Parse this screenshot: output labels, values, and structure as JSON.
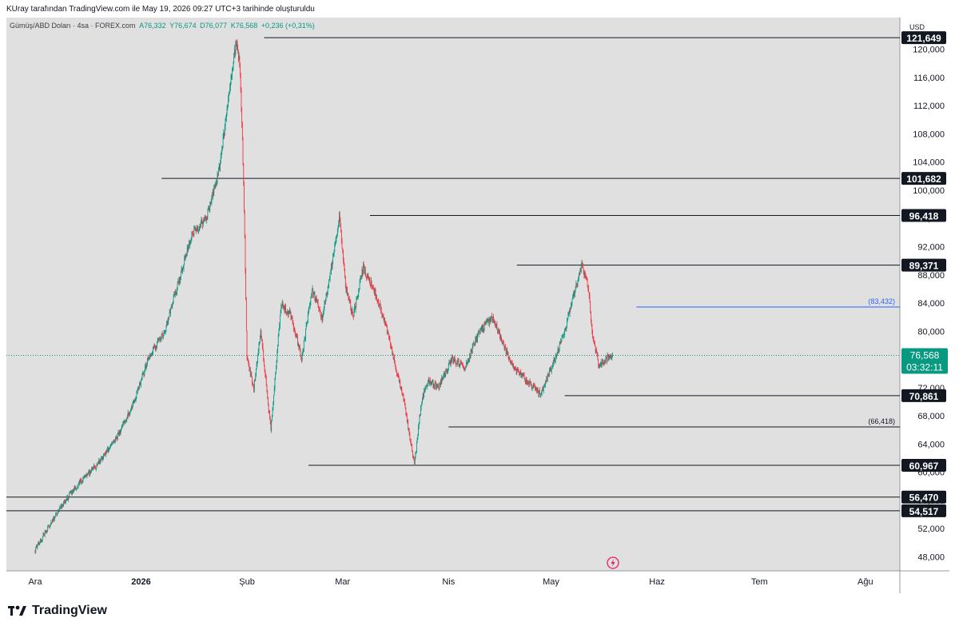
{
  "header": {
    "caption": "KUray tarafından TradingView.com ile May 19, 2026 09:27 UTC+3 tarihinde oluşturuldu"
  },
  "legend": {
    "symbol": "Gümüş/ABD Doları · 4sa · FOREX.com",
    "open": "A76,332",
    "high": "Y76,674",
    "low": "D76,077",
    "close": "K76,568",
    "change": "+0,236 (+0,31%)"
  },
  "price_axis": {
    "currency": "USD"
  },
  "footer": {
    "brand": "TradingView"
  },
  "chart_data": {
    "type": "line",
    "ylim": [
      46000,
      124500
    ],
    "x_ticks": [
      "Ara",
      "2026",
      "Şub",
      "Mar",
      "Nis",
      "May",
      "Haz",
      "Tem",
      "Ağu"
    ],
    "y_ticks": [
      48000,
      52000,
      56000,
      60000,
      64000,
      68000,
      72000,
      76000,
      80000,
      84000,
      88000,
      92000,
      96000,
      100000,
      104000,
      108000,
      112000,
      116000,
      120000
    ],
    "y_tick_labels": [
      "48,000",
      "52,000",
      "56,000",
      "60,000",
      "64,000",
      "68,000",
      "72,000",
      "76,000",
      "80,000",
      "84,000",
      "88,000",
      "92,000",
      "96,000",
      "100,000",
      "104,000",
      "108,000",
      "112,000",
      "116,000",
      "120,000"
    ],
    "last_price": {
      "value": 76568,
      "label": "76,568",
      "countdown": "03:32:11",
      "color": "#089981"
    },
    "levels": [
      {
        "value": 121649,
        "label": "121,649",
        "start": "Şub"
      },
      {
        "value": 101682,
        "label": "101,682",
        "start": "2026"
      },
      {
        "value": 96418,
        "label": "96,418",
        "start": "Mar"
      },
      {
        "value": 89371,
        "label": "89,371",
        "start": "Nis"
      },
      {
        "value": 83432,
        "label": "(83,432)",
        "start": "May",
        "color": "#2962ff"
      },
      {
        "value": 70861,
        "label": "70,861",
        "start": "May"
      },
      {
        "value": 66418,
        "label": "(66,418)",
        "start": "Mar"
      },
      {
        "value": 60967,
        "label": "60,967",
        "start": "Şub"
      },
      {
        "value": 56470,
        "label": "56,470",
        "start": "Ara"
      },
      {
        "value": 54517,
        "label": "54,517",
        "start": "Ara"
      }
    ],
    "series": [
      {
        "color_up": "#089981",
        "color_down": "#f23645",
        "x": [
          "Dec 1",
          "Dec 7",
          "Dec 13",
          "Dec 19",
          "Dec 25",
          "Dec 30",
          "Jan 3",
          "Jan 8",
          "Jan 12",
          "Jan 16",
          "Jan 20",
          "Jan 24",
          "Jan 27",
          "Jan 29",
          "Jan 30",
          "Jan 31",
          "Feb 1",
          "Feb 3",
          "Feb 5",
          "Feb 8",
          "Feb 11",
          "Feb 14",
          "Feb 17",
          "Feb 20",
          "Feb 23",
          "Feb 26",
          "Feb 28",
          "Mar 2",
          "Mar 4",
          "Mar 7",
          "Mar 10",
          "Mar 13",
          "Mar 16",
          "Mar 19",
          "Mar 22",
          "Mar 24",
          "Mar 26",
          "Mar 29",
          "Apr 2",
          "Apr 6",
          "Apr 10",
          "Apr 14",
          "Apr 17",
          "Apr 20",
          "Apr 24",
          "Apr 28",
          "May 2",
          "May 5",
          "May 8",
          "May 10",
          "May 12",
          "May 13",
          "May 15",
          "May 17",
          "May 19"
        ],
        "values": [
          49000,
          54000,
          58000,
          61000,
          65000,
          70000,
          76000,
          80000,
          87000,
          94000,
          96000,
          103000,
          115000,
          121600,
          117000,
          101600,
          76000,
          72000,
          80000,
          66000,
          84000,
          82000,
          76000,
          86000,
          82000,
          90000,
          96400,
          86000,
          82000,
          89000,
          86000,
          82000,
          76000,
          70000,
          61000,
          70000,
          73000,
          72000,
          76000,
          75000,
          80000,
          82000,
          78000,
          75000,
          73000,
          71000,
          76000,
          80000,
          86000,
          89300,
          86000,
          80000,
          75000,
          76000,
          76568
        ]
      }
    ],
    "grid": false
  }
}
